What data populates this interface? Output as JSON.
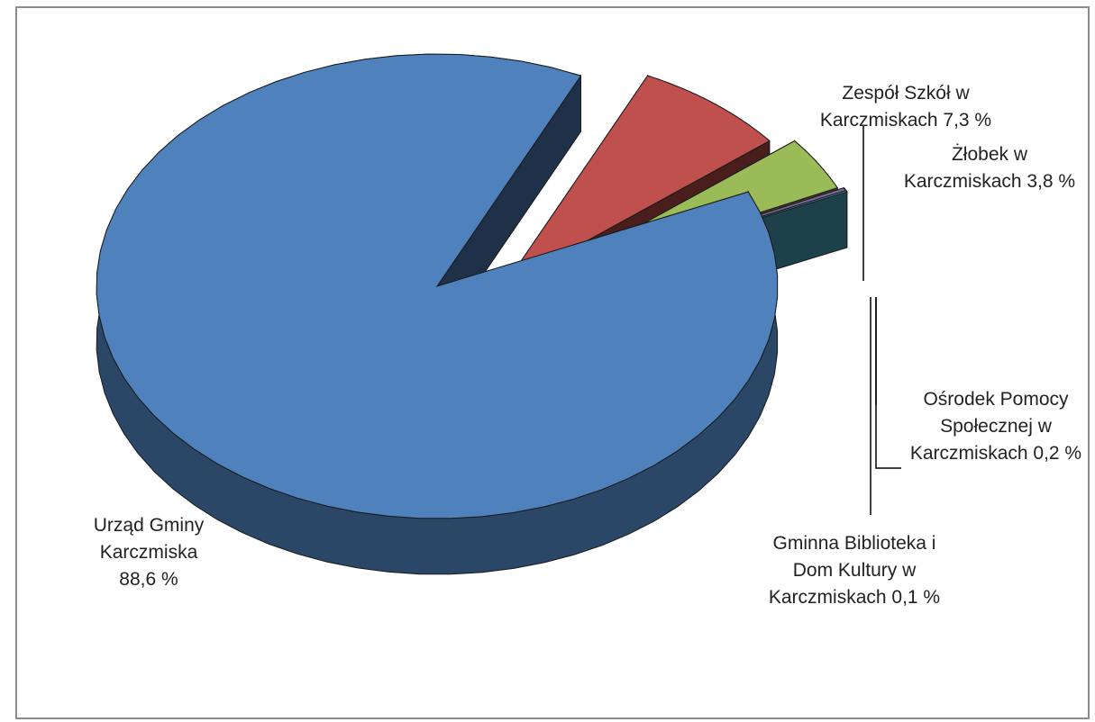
{
  "chart_data": {
    "type": "pie",
    "style": "3d-exploded",
    "slices": [
      {
        "name": "Urząd Gminy Karczmiska",
        "value": 88.6,
        "label_lines": [
          "Urząd Gminy",
          "Karczmiska",
          "88,6 %"
        ],
        "color": "#4F81BD"
      },
      {
        "name": "Zespół Szkół w Karczmiskach",
        "value": 7.3,
        "label_lines": [
          "Zespół Szkół w",
          "Karczmiskach 7,3 %"
        ],
        "color": "#C0504D"
      },
      {
        "name": "Żłobek w Karczmiskach",
        "value": 3.8,
        "label_lines": [
          "Żłobek w",
          "Karczmiskach 3,8 %"
        ],
        "color": "#9BBB59"
      },
      {
        "name": "Ośrodek Pomocy Społecznej w Karczmiskach",
        "value": 0.2,
        "label_lines": [
          "Ośrodek Pomocy",
          "Społecznej w",
          "Karczmiskach 0,2 %"
        ],
        "color": "#8064A2"
      },
      {
        "name": "Gminna Biblioteka i Dom Kultury w Karczmiskach",
        "value": 0.1,
        "label_lines": [
          "Gminna Biblioteka i",
          "Dom Kultury w",
          "Karczmiskach 0,1 %"
        ],
        "color": "#4BACC6"
      }
    ],
    "legend": "none"
  }
}
